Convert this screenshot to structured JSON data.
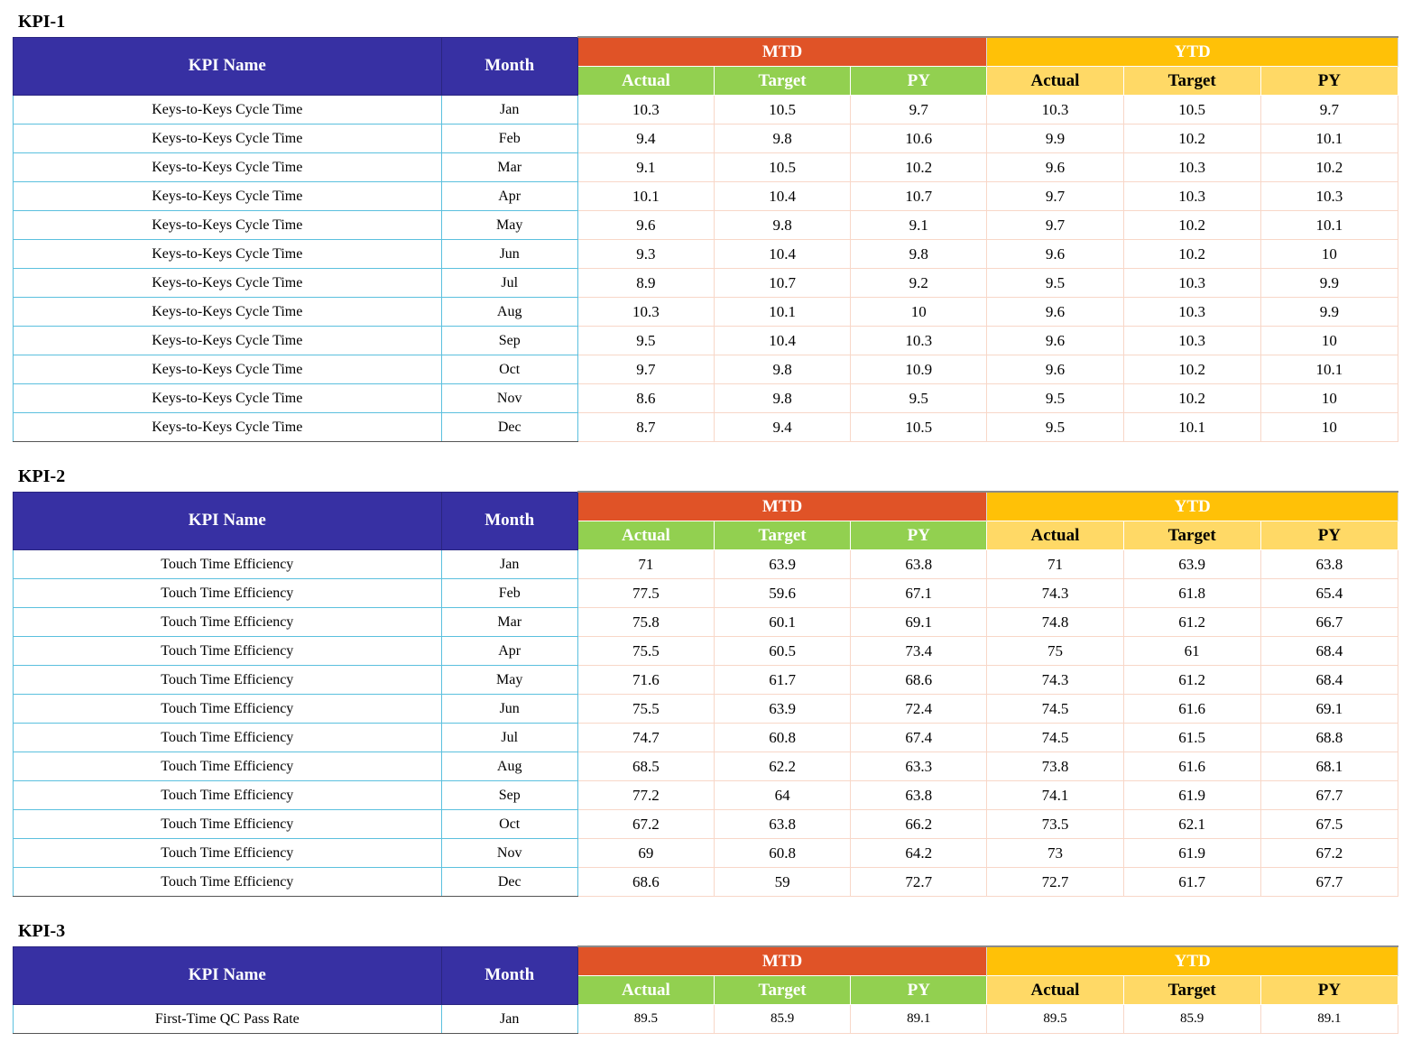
{
  "sections": [
    {
      "title": "KPI-1",
      "headers": {
        "kpi_name": "KPI Name",
        "month": "Month",
        "mtd": "MTD",
        "ytd": "YTD",
        "mtd_cols": [
          "Actual",
          "Target",
          "PY"
        ],
        "ytd_cols": [
          "Actual",
          "Target",
          "PY"
        ]
      },
      "rows": [
        {
          "name": "Keys-to-Keys Cycle Time",
          "month": "Jan",
          "mtd_actual": "10.3",
          "mtd_target": "10.5",
          "mtd_py": "9.7",
          "ytd_actual": "10.3",
          "ytd_target": "10.5",
          "ytd_py": "9.7"
        },
        {
          "name": "Keys-to-Keys Cycle Time",
          "month": "Feb",
          "mtd_actual": "9.4",
          "mtd_target": "9.8",
          "mtd_py": "10.6",
          "ytd_actual": "9.9",
          "ytd_target": "10.2",
          "ytd_py": "10.1"
        },
        {
          "name": "Keys-to-Keys Cycle Time",
          "month": "Mar",
          "mtd_actual": "9.1",
          "mtd_target": "10.5",
          "mtd_py": "10.2",
          "ytd_actual": "9.6",
          "ytd_target": "10.3",
          "ytd_py": "10.2"
        },
        {
          "name": "Keys-to-Keys Cycle Time",
          "month": "Apr",
          "mtd_actual": "10.1",
          "mtd_target": "10.4",
          "mtd_py": "10.7",
          "ytd_actual": "9.7",
          "ytd_target": "10.3",
          "ytd_py": "10.3"
        },
        {
          "name": "Keys-to-Keys Cycle Time",
          "month": "May",
          "mtd_actual": "9.6",
          "mtd_target": "9.8",
          "mtd_py": "9.1",
          "ytd_actual": "9.7",
          "ytd_target": "10.2",
          "ytd_py": "10.1"
        },
        {
          "name": "Keys-to-Keys Cycle Time",
          "month": "Jun",
          "mtd_actual": "9.3",
          "mtd_target": "10.4",
          "mtd_py": "9.8",
          "ytd_actual": "9.6",
          "ytd_target": "10.2",
          "ytd_py": "10"
        },
        {
          "name": "Keys-to-Keys Cycle Time",
          "month": "Jul",
          "mtd_actual": "8.9",
          "mtd_target": "10.7",
          "mtd_py": "9.2",
          "ytd_actual": "9.5",
          "ytd_target": "10.3",
          "ytd_py": "9.9"
        },
        {
          "name": "Keys-to-Keys Cycle Time",
          "month": "Aug",
          "mtd_actual": "10.3",
          "mtd_target": "10.1",
          "mtd_py": "10",
          "ytd_actual": "9.6",
          "ytd_target": "10.3",
          "ytd_py": "9.9"
        },
        {
          "name": "Keys-to-Keys Cycle Time",
          "month": "Sep",
          "mtd_actual": "9.5",
          "mtd_target": "10.4",
          "mtd_py": "10.3",
          "ytd_actual": "9.6",
          "ytd_target": "10.3",
          "ytd_py": "10"
        },
        {
          "name": "Keys-to-Keys Cycle Time",
          "month": "Oct",
          "mtd_actual": "9.7",
          "mtd_target": "9.8",
          "mtd_py": "10.9",
          "ytd_actual": "9.6",
          "ytd_target": "10.2",
          "ytd_py": "10.1"
        },
        {
          "name": "Keys-to-Keys Cycle Time",
          "month": "Nov",
          "mtd_actual": "8.6",
          "mtd_target": "9.8",
          "mtd_py": "9.5",
          "ytd_actual": "9.5",
          "ytd_target": "10.2",
          "ytd_py": "10"
        },
        {
          "name": "Keys-to-Keys Cycle Time",
          "month": "Dec",
          "mtd_actual": "8.7",
          "mtd_target": "9.4",
          "mtd_py": "10.5",
          "ytd_actual": "9.5",
          "ytd_target": "10.1",
          "ytd_py": "10"
        }
      ]
    },
    {
      "title": "KPI-2",
      "headers": {
        "kpi_name": "KPI Name",
        "month": "Month",
        "mtd": "MTD",
        "ytd": "YTD",
        "mtd_cols": [
          "Actual",
          "Target",
          "PY"
        ],
        "ytd_cols": [
          "Actual",
          "Target",
          "PY"
        ]
      },
      "rows": [
        {
          "name": "Touch Time Efficiency",
          "month": "Jan",
          "mtd_actual": "71",
          "mtd_target": "63.9",
          "mtd_py": "63.8",
          "ytd_actual": "71",
          "ytd_target": "63.9",
          "ytd_py": "63.8"
        },
        {
          "name": "Touch Time Efficiency",
          "month": "Feb",
          "mtd_actual": "77.5",
          "mtd_target": "59.6",
          "mtd_py": "67.1",
          "ytd_actual": "74.3",
          "ytd_target": "61.8",
          "ytd_py": "65.4"
        },
        {
          "name": "Touch Time Efficiency",
          "month": "Mar",
          "mtd_actual": "75.8",
          "mtd_target": "60.1",
          "mtd_py": "69.1",
          "ytd_actual": "74.8",
          "ytd_target": "61.2",
          "ytd_py": "66.7"
        },
        {
          "name": "Touch Time Efficiency",
          "month": "Apr",
          "mtd_actual": "75.5",
          "mtd_target": "60.5",
          "mtd_py": "73.4",
          "ytd_actual": "75",
          "ytd_target": "61",
          "ytd_py": "68.4"
        },
        {
          "name": "Touch Time Efficiency",
          "month": "May",
          "mtd_actual": "71.6",
          "mtd_target": "61.7",
          "mtd_py": "68.6",
          "ytd_actual": "74.3",
          "ytd_target": "61.2",
          "ytd_py": "68.4"
        },
        {
          "name": "Touch Time Efficiency",
          "month": "Jun",
          "mtd_actual": "75.5",
          "mtd_target": "63.9",
          "mtd_py": "72.4",
          "ytd_actual": "74.5",
          "ytd_target": "61.6",
          "ytd_py": "69.1"
        },
        {
          "name": "Touch Time Efficiency",
          "month": "Jul",
          "mtd_actual": "74.7",
          "mtd_target": "60.8",
          "mtd_py": "67.4",
          "ytd_actual": "74.5",
          "ytd_target": "61.5",
          "ytd_py": "68.8"
        },
        {
          "name": "Touch Time Efficiency",
          "month": "Aug",
          "mtd_actual": "68.5",
          "mtd_target": "62.2",
          "mtd_py": "63.3",
          "ytd_actual": "73.8",
          "ytd_target": "61.6",
          "ytd_py": "68.1"
        },
        {
          "name": "Touch Time Efficiency",
          "month": "Sep",
          "mtd_actual": "77.2",
          "mtd_target": "64",
          "mtd_py": "63.8",
          "ytd_actual": "74.1",
          "ytd_target": "61.9",
          "ytd_py": "67.7"
        },
        {
          "name": "Touch Time Efficiency",
          "month": "Oct",
          "mtd_actual": "67.2",
          "mtd_target": "63.8",
          "mtd_py": "66.2",
          "ytd_actual": "73.5",
          "ytd_target": "62.1",
          "ytd_py": "67.5"
        },
        {
          "name": "Touch Time Efficiency",
          "month": "Nov",
          "mtd_actual": "69",
          "mtd_target": "60.8",
          "mtd_py": "64.2",
          "ytd_actual": "73",
          "ytd_target": "61.9",
          "ytd_py": "67.2"
        },
        {
          "name": "Touch Time Efficiency",
          "month": "Dec",
          "mtd_actual": "68.6",
          "mtd_target": "59",
          "mtd_py": "72.7",
          "ytd_actual": "72.7",
          "ytd_target": "61.7",
          "ytd_py": "67.7"
        }
      ]
    },
    {
      "title": "KPI-3",
      "headers": {
        "kpi_name": "KPI Name",
        "month": "Month",
        "mtd": "MTD",
        "ytd": "YTD",
        "mtd_cols": [
          "Actual",
          "Target",
          "PY"
        ],
        "ytd_cols": [
          "Actual",
          "Target",
          "PY"
        ]
      },
      "rows": [
        {
          "name": "First-Time QC Pass Rate",
          "month": "Jan",
          "mtd_actual": "89.5",
          "mtd_target": "85.9",
          "mtd_py": "89.1",
          "ytd_actual": "89.5",
          "ytd_target": "85.9",
          "ytd_py": "89.1"
        }
      ]
    }
  ]
}
